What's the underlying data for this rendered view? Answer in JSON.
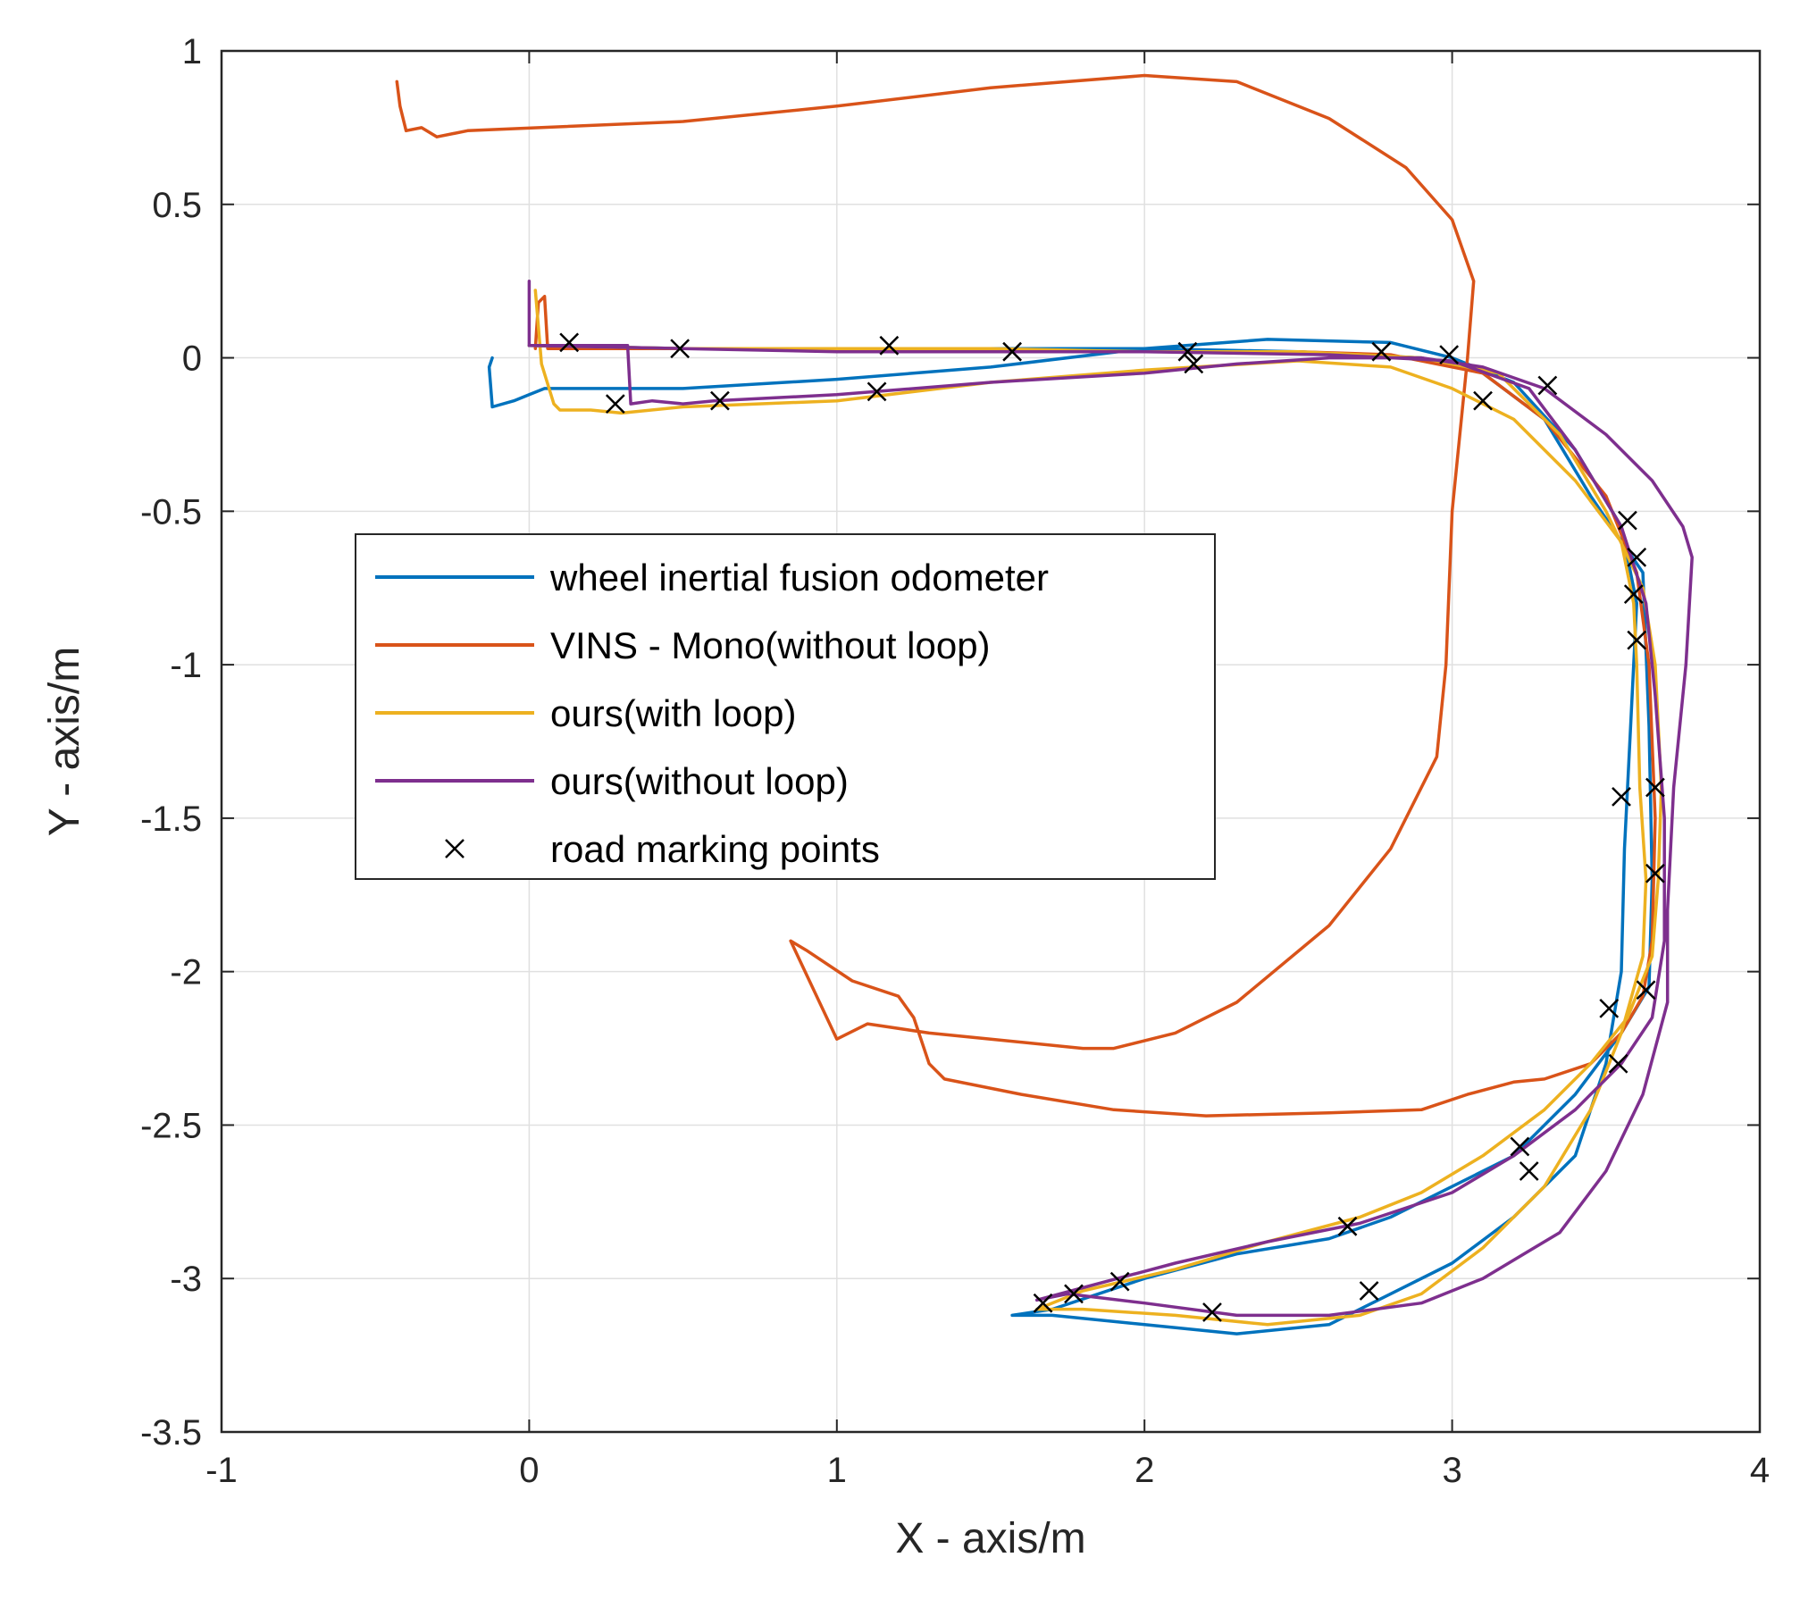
{
  "chart_data": {
    "type": "line",
    "title": "",
    "xlabel": "X - axis/m",
    "ylabel": "Y - axis/m",
    "xlim": [
      -1,
      4
    ],
    "ylim": [
      -3.5,
      1
    ],
    "xticks": [
      -1,
      0,
      1,
      2,
      3,
      4
    ],
    "yticks": [
      1,
      0.5,
      0,
      -0.5,
      -1,
      -1.5,
      -2,
      -2.5,
      -3,
      -3.5
    ],
    "xtick_labels": [
      "-1",
      "0",
      "1",
      "2",
      "3",
      "4"
    ],
    "ytick_labels": [
      "1",
      "0.5",
      "0",
      "-0.5",
      "-1",
      "-1.5",
      "-2",
      "-2.5",
      "-3",
      "-3.5"
    ],
    "grid": true,
    "legend_position": "middle-left",
    "series": [
      {
        "name": "wheel inertial fusion odometer",
        "color": "#0072BD",
        "points": [
          [
            -0.12,
            0.0
          ],
          [
            -0.13,
            -0.03
          ],
          [
            -0.12,
            -0.16
          ],
          [
            -0.05,
            -0.14
          ],
          [
            0.0,
            -0.12
          ],
          [
            0.05,
            -0.1
          ],
          [
            0.5,
            -0.1
          ],
          [
            1.0,
            -0.07
          ],
          [
            1.5,
            -0.03
          ],
          [
            2.0,
            0.03
          ],
          [
            2.4,
            0.06
          ],
          [
            2.8,
            0.05
          ],
          [
            3.0,
            0.0
          ],
          [
            3.2,
            -0.08
          ],
          [
            3.4,
            -0.3
          ],
          [
            3.55,
            -0.55
          ],
          [
            3.6,
            -0.8
          ],
          [
            3.58,
            -1.2
          ],
          [
            3.56,
            -1.6
          ],
          [
            3.55,
            -2.0
          ],
          [
            3.5,
            -2.3
          ],
          [
            3.4,
            -2.6
          ],
          [
            3.2,
            -2.8
          ],
          [
            3.0,
            -2.95
          ],
          [
            2.8,
            -3.05
          ],
          [
            2.6,
            -3.15
          ],
          [
            2.3,
            -3.18
          ],
          [
            2.0,
            -3.15
          ],
          [
            1.7,
            -3.12
          ],
          [
            1.57,
            -3.12
          ],
          [
            1.7,
            -3.1
          ],
          [
            2.0,
            -3.0
          ],
          [
            2.3,
            -2.92
          ],
          [
            2.6,
            -2.87
          ],
          [
            2.8,
            -2.8
          ],
          [
            3.0,
            -2.7
          ],
          [
            3.2,
            -2.6
          ],
          [
            3.4,
            -2.4
          ],
          [
            3.55,
            -2.2
          ],
          [
            3.64,
            -2.05
          ],
          [
            3.65,
            -1.7
          ],
          [
            3.64,
            -1.2
          ],
          [
            3.62,
            -0.7
          ],
          [
            3.45,
            -0.45
          ],
          [
            3.3,
            -0.2
          ],
          [
            3.1,
            -0.05
          ],
          [
            2.9,
            0.0
          ],
          [
            2.5,
            0.02
          ],
          [
            2.0,
            0.03
          ],
          [
            1.5,
            0.03
          ],
          [
            1.0,
            0.03
          ],
          [
            0.5,
            0.03
          ],
          [
            0.0,
            0.04
          ]
        ]
      },
      {
        "name": "VINS - Mono(without loop)",
        "color": "#D95319",
        "points": [
          [
            -0.43,
            0.9
          ],
          [
            -0.42,
            0.82
          ],
          [
            -0.4,
            0.74
          ],
          [
            -0.35,
            0.75
          ],
          [
            -0.3,
            0.72
          ],
          [
            -0.2,
            0.74
          ],
          [
            0.5,
            0.77
          ],
          [
            1.0,
            0.82
          ],
          [
            1.5,
            0.88
          ],
          [
            2.0,
            0.92
          ],
          [
            2.3,
            0.9
          ],
          [
            2.6,
            0.78
          ],
          [
            2.85,
            0.62
          ],
          [
            3.0,
            0.45
          ],
          [
            3.07,
            0.25
          ],
          [
            3.05,
            0.0
          ],
          [
            3.0,
            -0.5
          ],
          [
            2.98,
            -1.0
          ],
          [
            2.95,
            -1.3
          ],
          [
            2.8,
            -1.6
          ],
          [
            2.6,
            -1.85
          ],
          [
            2.3,
            -2.1
          ],
          [
            2.1,
            -2.2
          ],
          [
            1.9,
            -2.25
          ],
          [
            1.8,
            -2.25
          ],
          [
            1.5,
            -2.22
          ],
          [
            1.3,
            -2.2
          ],
          [
            1.1,
            -2.17
          ],
          [
            1.0,
            -2.22
          ],
          [
            0.85,
            -1.9
          ],
          [
            0.9,
            -1.93
          ],
          [
            1.05,
            -2.03
          ],
          [
            1.2,
            -2.08
          ],
          [
            1.25,
            -2.15
          ],
          [
            1.3,
            -2.3
          ],
          [
            1.35,
            -2.35
          ],
          [
            1.6,
            -2.4
          ],
          [
            1.9,
            -2.45
          ],
          [
            2.2,
            -2.47
          ],
          [
            2.6,
            -2.46
          ],
          [
            2.9,
            -2.45
          ],
          [
            3.05,
            -2.4
          ],
          [
            3.2,
            -2.36
          ],
          [
            3.3,
            -2.35
          ],
          [
            3.45,
            -2.3
          ],
          [
            3.55,
            -2.2
          ],
          [
            3.62,
            -2.08
          ],
          [
            3.65,
            -1.9
          ],
          [
            3.66,
            -1.5
          ],
          [
            3.64,
            -1.0
          ],
          [
            3.6,
            -0.7
          ],
          [
            3.5,
            -0.45
          ],
          [
            3.3,
            -0.2
          ],
          [
            3.1,
            -0.05
          ],
          [
            2.8,
            0.01
          ],
          [
            2.5,
            0.02
          ],
          [
            2.0,
            0.02
          ],
          [
            1.5,
            0.02
          ],
          [
            1.0,
            0.03
          ],
          [
            0.5,
            0.03
          ],
          [
            0.06,
            0.03
          ],
          [
            0.05,
            0.2
          ],
          [
            0.03,
            0.18
          ],
          [
            0.02,
            0.03
          ]
        ]
      },
      {
        "name": "ours(with loop)",
        "color": "#EDB120",
        "points": [
          [
            0.02,
            0.22
          ],
          [
            0.04,
            -0.02
          ],
          [
            0.08,
            -0.15
          ],
          [
            0.1,
            -0.17
          ],
          [
            0.2,
            -0.17
          ],
          [
            0.3,
            -0.18
          ],
          [
            0.5,
            -0.16
          ],
          [
            1.0,
            -0.14
          ],
          [
            1.5,
            -0.08
          ],
          [
            2.0,
            -0.04
          ],
          [
            2.5,
            -0.01
          ],
          [
            2.8,
            -0.03
          ],
          [
            3.0,
            -0.1
          ],
          [
            3.2,
            -0.2
          ],
          [
            3.4,
            -0.4
          ],
          [
            3.55,
            -0.6
          ],
          [
            3.59,
            -0.8
          ],
          [
            3.6,
            -1.0
          ],
          [
            3.61,
            -1.4
          ],
          [
            3.63,
            -1.7
          ],
          [
            3.62,
            -1.95
          ],
          [
            3.55,
            -2.2
          ],
          [
            3.45,
            -2.45
          ],
          [
            3.3,
            -2.7
          ],
          [
            3.1,
            -2.9
          ],
          [
            2.9,
            -3.05
          ],
          [
            2.7,
            -3.12
          ],
          [
            2.4,
            -3.15
          ],
          [
            2.1,
            -3.12
          ],
          [
            1.8,
            -3.1
          ],
          [
            1.65,
            -3.1
          ],
          [
            1.8,
            -3.04
          ],
          [
            2.1,
            -2.97
          ],
          [
            2.4,
            -2.88
          ],
          [
            2.7,
            -2.8
          ],
          [
            2.9,
            -2.72
          ],
          [
            3.1,
            -2.6
          ],
          [
            3.3,
            -2.45
          ],
          [
            3.45,
            -2.3
          ],
          [
            3.57,
            -2.15
          ],
          [
            3.65,
            -1.95
          ],
          [
            3.67,
            -1.7
          ],
          [
            3.68,
            -1.4
          ],
          [
            3.66,
            -1.0
          ],
          [
            3.62,
            -0.75
          ],
          [
            3.5,
            -0.5
          ],
          [
            3.35,
            -0.25
          ],
          [
            3.15,
            -0.05
          ],
          [
            2.9,
            0.0
          ],
          [
            2.5,
            0.02
          ],
          [
            2.0,
            0.02
          ],
          [
            1.5,
            0.03
          ],
          [
            1.0,
            0.03
          ],
          [
            0.5,
            0.03
          ],
          [
            0.0,
            0.04
          ]
        ]
      },
      {
        "name": "ours(without loop)",
        "color": "#7E2F8E",
        "points": [
          [
            0.0,
            0.25
          ],
          [
            0.0,
            0.04
          ],
          [
            0.2,
            0.04
          ],
          [
            0.32,
            0.04
          ],
          [
            0.33,
            -0.15
          ],
          [
            0.4,
            -0.14
          ],
          [
            0.5,
            -0.15
          ],
          [
            0.6,
            -0.14
          ],
          [
            1.0,
            -0.12
          ],
          [
            1.5,
            -0.08
          ],
          [
            2.0,
            -0.05
          ],
          [
            2.3,
            -0.02
          ],
          [
            2.6,
            0.0
          ],
          [
            2.9,
            0.0
          ],
          [
            3.1,
            -0.03
          ],
          [
            3.3,
            -0.1
          ],
          [
            3.5,
            -0.25
          ],
          [
            3.65,
            -0.4
          ],
          [
            3.75,
            -0.55
          ],
          [
            3.78,
            -0.65
          ],
          [
            3.76,
            -1.0
          ],
          [
            3.72,
            -1.4
          ],
          [
            3.7,
            -1.8
          ],
          [
            3.7,
            -2.1
          ],
          [
            3.62,
            -2.4
          ],
          [
            3.5,
            -2.65
          ],
          [
            3.35,
            -2.85
          ],
          [
            3.1,
            -3.0
          ],
          [
            2.9,
            -3.08
          ],
          [
            2.6,
            -3.12
          ],
          [
            2.3,
            -3.12
          ],
          [
            2.0,
            -3.08
          ],
          [
            1.75,
            -3.05
          ],
          [
            1.65,
            -3.07
          ],
          [
            1.8,
            -3.03
          ],
          [
            2.1,
            -2.95
          ],
          [
            2.4,
            -2.88
          ],
          [
            2.7,
            -2.82
          ],
          [
            3.0,
            -2.72
          ],
          [
            3.2,
            -2.6
          ],
          [
            3.4,
            -2.45
          ],
          [
            3.55,
            -2.3
          ],
          [
            3.65,
            -2.15
          ],
          [
            3.69,
            -1.9
          ],
          [
            3.69,
            -1.5
          ],
          [
            3.66,
            -1.1
          ],
          [
            3.63,
            -0.8
          ],
          [
            3.55,
            -0.55
          ],
          [
            3.4,
            -0.3
          ],
          [
            3.25,
            -0.1
          ],
          [
            3.0,
            -0.01
          ],
          [
            2.6,
            0.01
          ],
          [
            2.0,
            0.02
          ],
          [
            1.5,
            0.02
          ],
          [
            1.0,
            0.02
          ],
          [
            0.5,
            0.03
          ],
          [
            0.0,
            0.04
          ]
        ]
      }
    ],
    "markers": {
      "name": "road marking points",
      "symbol": "×",
      "color": "#000000",
      "points": [
        [
          0.13,
          0.05
        ],
        [
          0.28,
          -0.15
        ],
        [
          0.49,
          0.03
        ],
        [
          0.62,
          -0.14
        ],
        [
          1.13,
          -0.11
        ],
        [
          1.17,
          0.04
        ],
        [
          1.57,
          0.02
        ],
        [
          2.14,
          0.02
        ],
        [
          2.16,
          -0.02
        ],
        [
          2.77,
          0.02
        ],
        [
          2.99,
          0.01
        ],
        [
          3.1,
          -0.14
        ],
        [
          3.31,
          -0.09
        ],
        [
          3.57,
          -0.53
        ],
        [
          3.6,
          -0.65
        ],
        [
          3.59,
          -0.77
        ],
        [
          3.6,
          -0.92
        ],
        [
          3.55,
          -1.43
        ],
        [
          3.66,
          -1.4
        ],
        [
          3.66,
          -1.68
        ],
        [
          3.51,
          -2.12
        ],
        [
          3.63,
          -2.06
        ],
        [
          3.54,
          -2.3
        ],
        [
          3.22,
          -2.57
        ],
        [
          3.25,
          -2.65
        ],
        [
          2.66,
          -2.83
        ],
        [
          2.73,
          -3.04
        ],
        [
          1.92,
          -3.01
        ],
        [
          1.77,
          -3.05
        ],
        [
          1.67,
          -3.08
        ],
        [
          2.22,
          -3.11
        ]
      ]
    }
  }
}
